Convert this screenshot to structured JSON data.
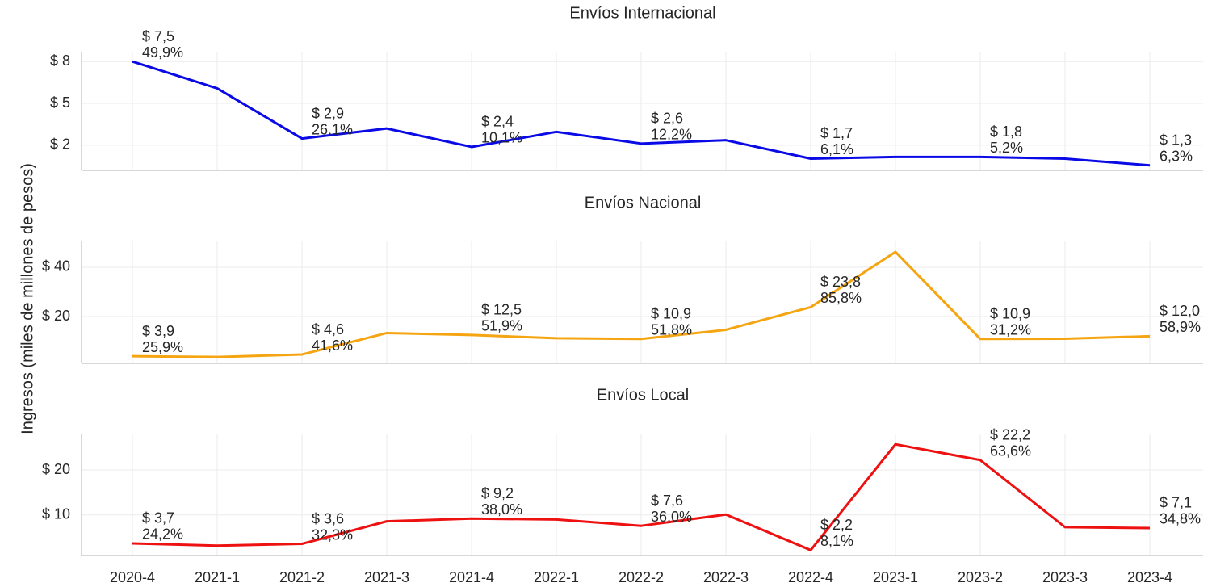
{
  "ylabel": "Ingresos (miles de millones de pesos)",
  "chart_data": [
    {
      "type": "line",
      "title": "Envíos Internacional",
      "categories": [
        "2020-4",
        "2021-1",
        "2021-2",
        "2021-3",
        "2021-4",
        "2022-1",
        "2022-2",
        "2022-3",
        "2022-4",
        "2023-1",
        "2023-2",
        "2023-3",
        "2023-4"
      ],
      "series": [
        {
          "name": "Envíos Internacional",
          "color": "#0a0ae6",
          "values": [
            7.5,
            5.9,
            2.9,
            3.5,
            2.4,
            3.3,
            2.6,
            2.8,
            1.7,
            1.8,
            1.8,
            1.7,
            1.3
          ],
          "value_labels": [
            "$ 7,5",
            null,
            "$ 2,9",
            null,
            "$ 2,4",
            null,
            "$ 2,6",
            null,
            "$ 1,7",
            null,
            "$ 1,8",
            null,
            "$ 1,3"
          ],
          "change_labels": [
            "49,9%",
            null,
            "26,1%",
            null,
            "10,1%",
            null,
            "12,2%",
            null,
            "6,1%",
            null,
            "5,2%",
            null,
            "6,3%"
          ]
        }
      ],
      "ylim": [
        1.0,
        7.8
      ],
      "yticks": [
        {
          "value": 2.5,
          "label": "$ 2"
        },
        {
          "value": 5,
          "label": "$ 5"
        },
        {
          "value": 7.5,
          "label": "$ 8"
        }
      ],
      "grid": true
    },
    {
      "type": "line",
      "title": "Envíos Nacional",
      "categories": [
        "2020-4",
        "2021-1",
        "2021-2",
        "2021-3",
        "2021-4",
        "2022-1",
        "2022-2",
        "2022-3",
        "2022-4",
        "2023-1",
        "2023-2",
        "2023-3",
        "2023-4"
      ],
      "series": [
        {
          "name": "Envíos Nacional",
          "color": "#f5a511",
          "values": [
            3.9,
            3.6,
            4.6,
            13.3,
            12.5,
            11.2,
            10.9,
            14.6,
            23.8,
            46.2,
            10.9,
            11.0,
            12.0
          ],
          "value_labels": [
            "$ 3,9",
            null,
            "$ 4,6",
            null,
            "$ 12,5",
            null,
            "$ 10,9",
            null,
            "$ 23,8",
            null,
            "$ 10,9",
            null,
            "$ 12,0"
          ],
          "change_labels": [
            "25,9%",
            null,
            "41,6%",
            null,
            "51,9%",
            null,
            "51,8%",
            null,
            "85,8%",
            null,
            "31,2%",
            null,
            "58,9%"
          ]
        }
      ],
      "ylim": [
        1.0,
        48.5
      ],
      "yticks": [
        {
          "value": 20,
          "label": "$ 20"
        },
        {
          "value": 40,
          "label": "$ 40"
        }
      ],
      "grid": true
    },
    {
      "type": "line",
      "title": "Envíos Local",
      "categories": [
        "2020-4",
        "2021-1",
        "2021-2",
        "2021-3",
        "2021-4",
        "2022-1",
        "2022-2",
        "2022-3",
        "2022-4",
        "2023-1",
        "2023-2",
        "2023-3",
        "2023-4"
      ],
      "series": [
        {
          "name": "Envíos Local",
          "color": "#ee1111",
          "values": [
            3.7,
            3.2,
            3.6,
            8.6,
            9.2,
            9.0,
            7.6,
            10.1,
            2.2,
            25.7,
            22.2,
            7.3,
            7.1
          ],
          "value_labels": [
            "$ 3,7",
            null,
            "$ 3,6",
            null,
            "$ 9,2",
            null,
            "$ 7,6",
            null,
            "$ 2,2",
            null,
            "$ 22,2",
            null,
            "$ 7,1"
          ],
          "change_labels": [
            "24,2%",
            null,
            "32,3%",
            null,
            "38,0%",
            null,
            "36,0%",
            null,
            "8,1%",
            null,
            "63,6%",
            null,
            "34,8%"
          ]
        }
      ],
      "ylim": [
        1.0,
        27.0
      ],
      "yticks": [
        {
          "value": 10,
          "label": "$ 10"
        },
        {
          "value": 20,
          "label": "$ 20"
        }
      ],
      "grid": true,
      "show_xticks": true
    }
  ]
}
